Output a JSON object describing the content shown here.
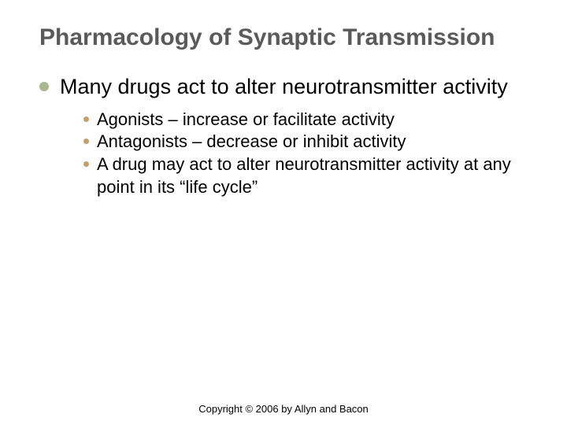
{
  "title": "Pharmacology of Synaptic Transmission",
  "level1_bullet_color": "#a9b88f",
  "level2_bullet_color": "#c0a070",
  "title_color": "#5a5a5a",
  "text_color": "#000000",
  "background_color": "#ffffff",
  "title_fontsize": 30,
  "level1_fontsize": 27,
  "level2_fontsize": 22,
  "footer_fontsize": 13,
  "level1": {
    "text": "Many drugs act to alter neurotransmitter activity"
  },
  "level2": [
    {
      "text": "Agonists – increase or facilitate activity"
    },
    {
      "text": "Antagonists – decrease or inhibit activity"
    },
    {
      "text": "A drug may act to alter neurotransmitter activity at any point in its “life cycle”"
    }
  ],
  "footer": "Copyright © 2006 by Allyn and Bacon"
}
